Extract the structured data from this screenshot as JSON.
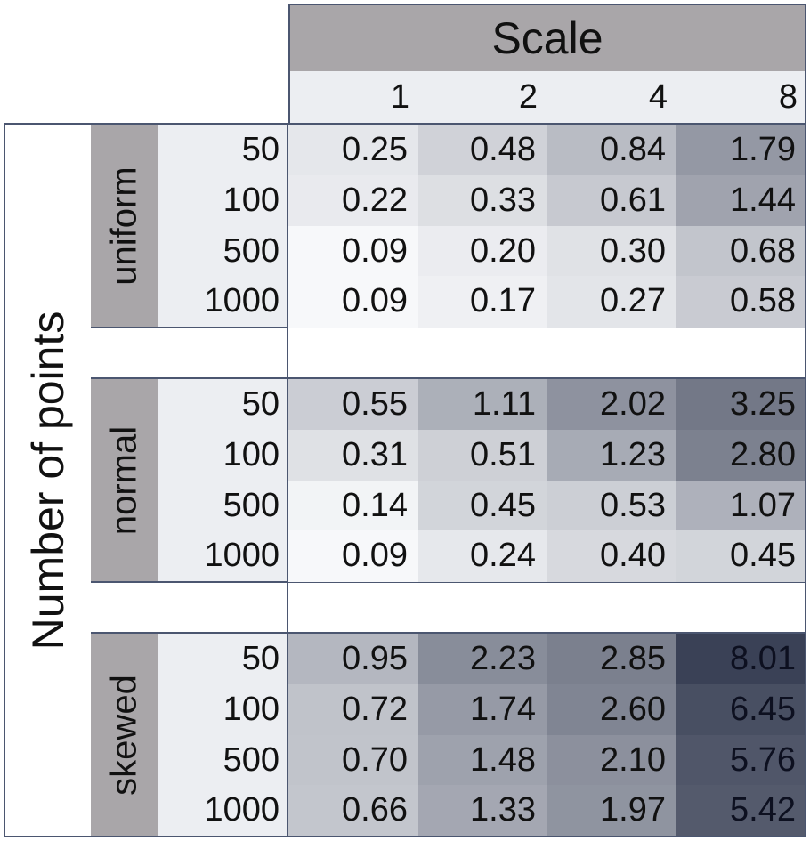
{
  "chart_data": {
    "type": "heatmap",
    "title": "Scale",
    "ylabel": "Number of points",
    "columns": [
      "1",
      "2",
      "4",
      "8"
    ],
    "groups": [
      {
        "name": "uniform",
        "rows": [
          {
            "n": "50",
            "values": [
              "0.25",
              "0.48",
              "0.84",
              "1.79"
            ]
          },
          {
            "n": "100",
            "values": [
              "0.22",
              "0.33",
              "0.61",
              "1.44"
            ]
          },
          {
            "n": "500",
            "values": [
              "0.09",
              "0.20",
              "0.30",
              "0.68"
            ]
          },
          {
            "n": "1000",
            "values": [
              "0.09",
              "0.17",
              "0.27",
              "0.58"
            ]
          }
        ]
      },
      {
        "name": "normal",
        "rows": [
          {
            "n": "50",
            "values": [
              "0.55",
              "1.11",
              "2.02",
              "3.25"
            ]
          },
          {
            "n": "100",
            "values": [
              "0.31",
              "0.51",
              "1.23",
              "2.80"
            ]
          },
          {
            "n": "500",
            "values": [
              "0.14",
              "0.45",
              "0.53",
              "1.07"
            ]
          },
          {
            "n": "1000",
            "values": [
              "0.09",
              "0.24",
              "0.40",
              "0.45"
            ]
          }
        ]
      },
      {
        "name": "skewed",
        "rows": [
          {
            "n": "50",
            "values": [
              "0.95",
              "2.23",
              "2.85",
              "8.01"
            ]
          },
          {
            "n": "100",
            "values": [
              "0.72",
              "1.74",
              "2.60",
              "6.45"
            ]
          },
          {
            "n": "500",
            "values": [
              "0.70",
              "1.48",
              "2.10",
              "5.76"
            ]
          },
          {
            "n": "1000",
            "values": [
              "0.66",
              "1.33",
              "1.97",
              "5.42"
            ]
          }
        ]
      }
    ],
    "colors": {
      "header_band": "#a9a6a9",
      "header_light": "#eceef2",
      "frame": "#4b5670",
      "scale_low": "#f7f8fa",
      "scale_high": "#3a4156"
    }
  }
}
